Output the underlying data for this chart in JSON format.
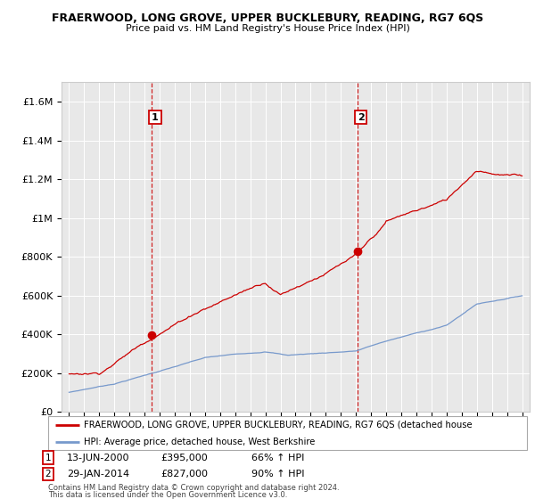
{
  "title": "FRAERWOOD, LONG GROVE, UPPER BUCKLEBURY, READING, RG7 6QS",
  "subtitle": "Price paid vs. HM Land Registry's House Price Index (HPI)",
  "background_color": "#ffffff",
  "plot_bg_color": "#e8e8e8",
  "grid_color": "#ffffff",
  "red_line_color": "#cc0000",
  "blue_line_color": "#7799cc",
  "sale1_date_x": 2000.45,
  "sale1_price": 395000,
  "sale1_label": "1",
  "sale2_date_x": 2014.08,
  "sale2_price": 827000,
  "sale2_label": "2",
  "legend_red": "FRAERWOOD, LONG GROVE, UPPER BUCKLEBURY, READING, RG7 6QS (detached house",
  "legend_blue": "HPI: Average price, detached house, West Berkshire",
  "footnote3": "Contains HM Land Registry data © Crown copyright and database right 2024.",
  "footnote4": "This data is licensed under the Open Government Licence v3.0.",
  "ylim": [
    0,
    1700000
  ],
  "yticks": [
    0,
    200000,
    400000,
    600000,
    800000,
    1000000,
    1200000,
    1400000,
    1600000
  ],
  "ytick_labels": [
    "£0",
    "£200K",
    "£400K",
    "£600K",
    "£800K",
    "£1M",
    "£1.2M",
    "£1.4M",
    "£1.6M"
  ],
  "xlim": [
    1994.5,
    2025.5
  ],
  "sale1_text_date": "13-JUN-2000",
  "sale1_text_price": "£395,000",
  "sale1_text_hpi": "66% ↑ HPI",
  "sale2_text_date": "29-JAN-2014",
  "sale2_text_price": "£827,000",
  "sale2_text_hpi": "90% ↑ HPI"
}
